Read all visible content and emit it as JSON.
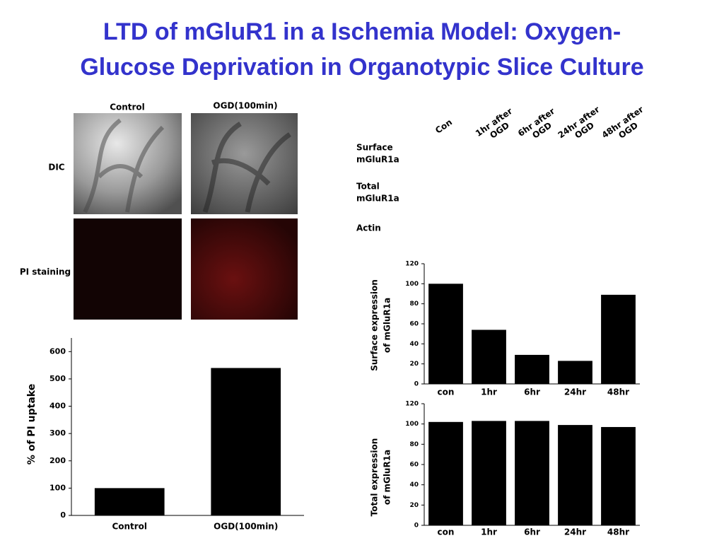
{
  "title": [
    "LTD of mGluR1 in a Ischemia Model: Oxygen-",
    "Glucose Deprivation in Organotypic Slice Culture"
  ],
  "panels": {
    "columns": [
      "Control",
      "OGD(100min)"
    ],
    "rows": [
      "DIC",
      "PI staining"
    ]
  },
  "blot": {
    "lanes": [
      [
        "Con"
      ],
      [
        "1hr after",
        "OGD"
      ],
      [
        "6hr after",
        "OGD"
      ],
      [
        "24hr after",
        "OGD"
      ],
      [
        "48hr after",
        "OGD"
      ]
    ],
    "rows": [
      [
        "Surface",
        "mGluR1a"
      ],
      [
        "Total",
        "mGluR1a"
      ],
      [
        "Actin"
      ]
    ]
  },
  "chart_data": [
    {
      "type": "bar",
      "ylabel": [
        "% of PI uptake"
      ],
      "categories": [
        "Control",
        "OGD(100min)"
      ],
      "values": [
        100,
        540
      ],
      "color": "#000000",
      "ylim": [
        0,
        650
      ],
      "yticks": [
        0,
        100,
        200,
        300,
        400,
        500,
        600
      ]
    },
    {
      "type": "bar",
      "ylabel": [
        "Surface expression",
        "of mGluR1a"
      ],
      "categories": [
        "con",
        "1hr",
        "6hr",
        "24hr",
        "48hr"
      ],
      "values": [
        100,
        54,
        29,
        23,
        89
      ],
      "color": "#000000",
      "ylim": [
        0,
        120
      ],
      "yticks": [
        0,
        20,
        40,
        60,
        80,
        100,
        120
      ]
    },
    {
      "type": "bar",
      "ylabel": [
        "Total expression",
        "of mGluR1a"
      ],
      "categories": [
        "con",
        "1hr",
        "6hr",
        "24hr",
        "48hr"
      ],
      "values": [
        102,
        103,
        103,
        99,
        97
      ],
      "color": "#000000",
      "ylim": [
        0,
        120
      ],
      "yticks": [
        0,
        20,
        40,
        60,
        80,
        100,
        120
      ]
    }
  ]
}
